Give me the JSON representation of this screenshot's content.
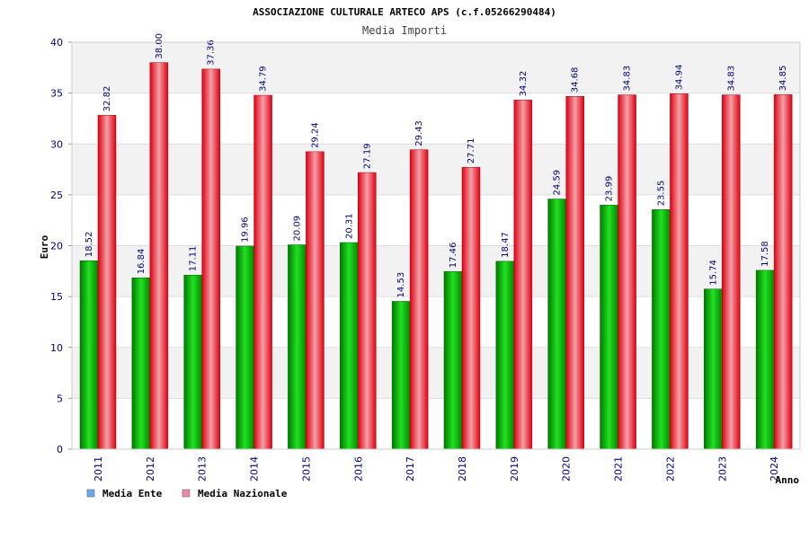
{
  "chart_data": {
    "type": "bar",
    "title": "ASSOCIAZIONE CULTURALE ARTECO APS (c.f.05266290484)",
    "subtitle": "Media Importi",
    "xlabel": "Anno",
    "ylabel": "Euro",
    "ylim": [
      0,
      40
    ],
    "yticks": [
      "0",
      "5",
      "10",
      "15",
      "20",
      "25",
      "30",
      "35",
      "40"
    ],
    "categories": [
      "2011",
      "2012",
      "2013",
      "2014",
      "2015",
      "2016",
      "2017",
      "2018",
      "2019",
      "2020",
      "2021",
      "2022",
      "2023",
      "2024"
    ],
    "series": [
      {
        "name": "Media Ente",
        "color": "#00cc00",
        "values": [
          18.52,
          16.84,
          17.11,
          19.96,
          20.09,
          20.31,
          14.53,
          17.46,
          18.47,
          24.59,
          23.99,
          23.55,
          15.74,
          17.58
        ],
        "labels": [
          "18.52",
          "16.84",
          "17.11",
          "19.96",
          "20.09",
          "20.31",
          "14.53",
          "17.46",
          "18.47",
          "24.59",
          "23.99",
          "23.55",
          "15.74",
          "17.58"
        ]
      },
      {
        "name": "Media Nazionale",
        "color": "#ee1122",
        "values": [
          32.82,
          38.0,
          37.36,
          34.79,
          29.24,
          27.19,
          29.43,
          27.71,
          34.32,
          34.68,
          34.83,
          34.94,
          34.83,
          34.85
        ],
        "labels": [
          "32.82",
          "38.00",
          "37.36",
          "34.79",
          "29.24",
          "27.19",
          "29.43",
          "27.71",
          "34.32",
          "34.68",
          "34.83",
          "34.94",
          "34.83",
          "34.85"
        ]
      }
    ],
    "legend": {
      "position": "bottom-left",
      "items": [
        {
          "label": "Media Ente",
          "color": "#66aaee"
        },
        {
          "label": "Media Nazionale",
          "color": "#ee88aa"
        }
      ]
    },
    "grid": true
  }
}
